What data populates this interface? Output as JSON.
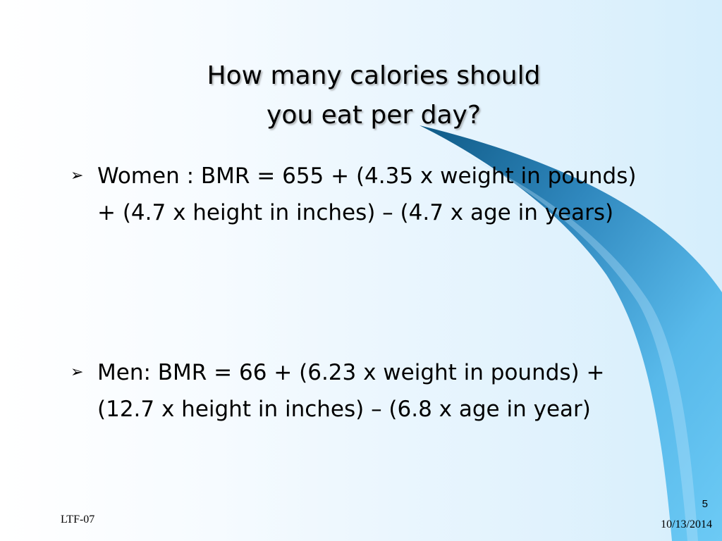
{
  "slide": {
    "title_line1": "How many calories should",
    "title_line2": "you eat per day?",
    "bullets": [
      {
        "marker": "➢",
        "text": "Women : BMR = 655 + (4.35 x weight in pounds) + (4.7 x height in inches) – (4.7 x age in years)"
      },
      {
        "marker": "➢",
        "text": "Men: BMR = 66 + (6.23 x weight in pounds) + (12.7 x height in inches) – (6.8 x age in year)"
      }
    ],
    "footer_left": "LTF-07",
    "page_number": "5",
    "footer_date": "10/13/2014"
  },
  "colors": {
    "swoosh_dark": "#1a6f9e",
    "swoosh_light": "#66c6f4",
    "background_light": "#d5eefc"
  }
}
